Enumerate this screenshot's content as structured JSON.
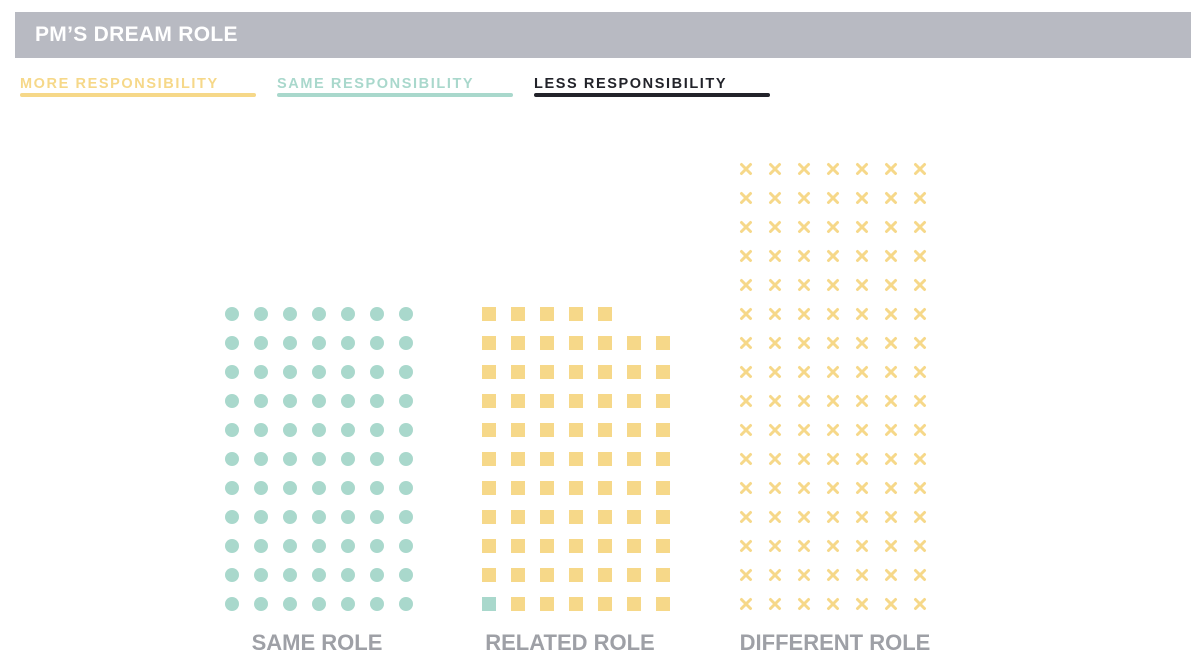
{
  "title": "PM’S DREAM ROLE",
  "colors": {
    "more": "#f6d889",
    "same": "#a9d8cc",
    "less": "#22232a",
    "label": "#9ea0a6"
  },
  "legend": [
    {
      "key": "more",
      "label": "MORE RESPONSIBILITY",
      "marker": "square"
    },
    {
      "key": "same",
      "label": "SAME RESPONSIBILITY",
      "marker": "circle"
    },
    {
      "key": "less",
      "label": "LESS RESPONSIBILITY",
      "marker": "x"
    }
  ],
  "chart_data": {
    "type": "waffle",
    "title": "PM’S DREAM ROLE",
    "columns_per_group": 7,
    "categories": [
      "SAME ROLE",
      "RELATED ROLE",
      "DIFFERENT ROLE"
    ],
    "series": [
      {
        "name": "SAME ROLE",
        "marker": "circle",
        "color_key": "same",
        "count": 77,
        "units": [
          {
            "key": "same",
            "count": 77
          }
        ]
      },
      {
        "name": "RELATED ROLE",
        "marker": "square",
        "color_key": "more",
        "count": 75,
        "units": [
          {
            "key": "same",
            "count": 1
          },
          {
            "key": "more",
            "count": 74
          }
        ]
      },
      {
        "name": "DIFFERENT ROLE",
        "marker": "x",
        "color_key": "more",
        "count": 112,
        "units": [
          {
            "key": "more",
            "count": 112
          }
        ]
      }
    ]
  }
}
